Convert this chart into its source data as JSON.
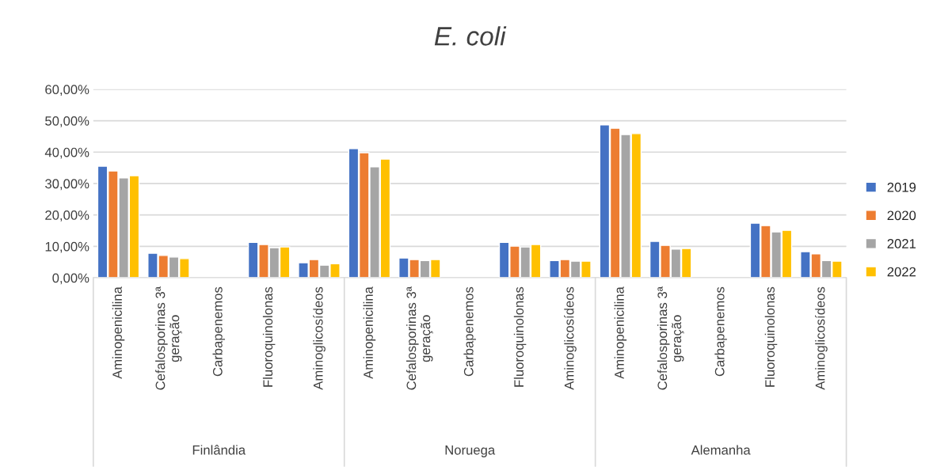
{
  "chart_data": {
    "type": "bar",
    "title": "E. coli",
    "categories": [
      "Aminopenicilina",
      "Cefalosporinas 3ª\ngeração",
      "Carbapenemos",
      "Fluoroquinolonas",
      "Aminoglicosídeos",
      "Aminopenicilina",
      "Cefalosporinas 3ª\ngeração",
      "Carbapenemos",
      "Fluoroquinolonas",
      "Aminoglicosídeos",
      "Aminopenicilina",
      "Cefalosporinas 3ª\ngeração",
      "Carbapenemos",
      "Fluoroquinolonas",
      "Aminoglicosídeos"
    ],
    "annotations": [
      "Finlândia",
      "Noruega",
      "Alemanha"
    ],
    "series": [
      {
        "name": "2019",
        "color": "#4472c4",
        "values": [
          35.5,
          7.8,
          null,
          11.3,
          4.8,
          41.1,
          6.3,
          null,
          11.3,
          5.5,
          48.7,
          11.6,
          null,
          17.4,
          8.3
        ]
      },
      {
        "name": "2020",
        "color": "#ed7d31",
        "values": [
          34.0,
          7.1,
          null,
          10.6,
          5.8,
          39.8,
          5.8,
          null,
          10.1,
          5.8,
          47.6,
          10.3,
          null,
          16.6,
          7.6
        ]
      },
      {
        "name": "2021",
        "color": "#a5a5a5",
        "values": [
          31.8,
          6.6,
          null,
          9.6,
          4.0,
          35.3,
          5.5,
          null,
          9.8,
          5.3,
          45.6,
          9.1,
          null,
          14.6,
          5.5
        ]
      },
      {
        "name": "2022",
        "color": "#ffc000",
        "values": [
          32.5,
          6.1,
          null,
          9.8,
          4.5,
          37.8,
          5.8,
          null,
          10.6,
          5.3,
          45.9,
          9.3,
          null,
          15.1,
          5.3
        ]
      }
    ],
    "ylim": [
      0,
      60
    ],
    "yticks": [
      {
        "value": 0,
        "label": "0,00%"
      },
      {
        "value": 10,
        "label": "10,00%"
      },
      {
        "value": 20,
        "label": "20,00%"
      },
      {
        "value": 30,
        "label": "30,00%"
      },
      {
        "value": 40,
        "label": "40,00%"
      },
      {
        "value": 50,
        "label": "50,00%"
      },
      {
        "value": 60,
        "label": "60,00%"
      }
    ],
    "grid": "y",
    "legend": "right"
  }
}
